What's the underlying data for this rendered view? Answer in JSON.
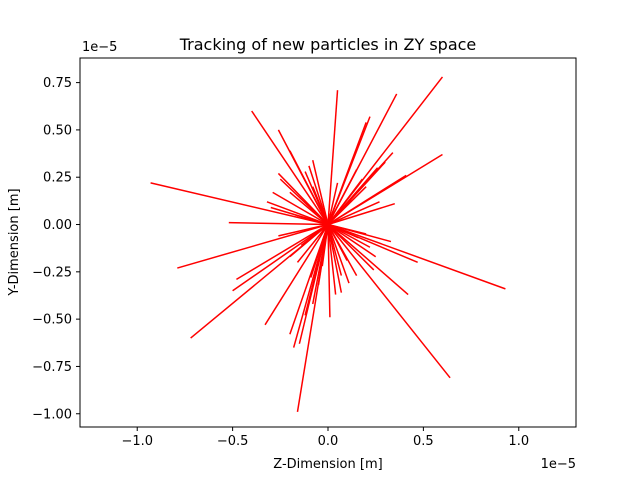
{
  "chart_data": {
    "type": "line",
    "title": "Tracking of new particles in ZY space",
    "xlabel": "Z-Dimension [m]",
    "ylabel": "Y-Dimension [m]",
    "x_exponent_label": "1e−5",
    "y_exponent_label": "1e−5",
    "axis_scale": 1e-05,
    "xlim": [
      -1.3e-05,
      1.3e-05
    ],
    "ylim": [
      -1.07e-05,
      8.8e-06
    ],
    "x_ticks": [
      -1e-05,
      -5e-06,
      0.0,
      5e-06,
      1e-05
    ],
    "x_tick_labels": [
      "−1.0",
      "−0.5",
      "0.0",
      "0.5",
      "1.0"
    ],
    "y_ticks": [
      -1e-05,
      -7.5e-06,
      -5e-06,
      -2.5e-06,
      0.0,
      2.5e-06,
      5e-06,
      7.5e-06
    ],
    "y_tick_labels": [
      "−1.00",
      "−0.75",
      "−0.50",
      "−0.25",
      "0.00",
      "0.25",
      "0.50",
      "0.75"
    ],
    "grid": false,
    "line_color": "#ff0000",
    "origin": [
      0.0,
      0.0
    ],
    "track_endpoints": [
      [
        6e-06,
        7.8e-06
      ],
      [
        5e-07,
        7.1e-06
      ],
      [
        3.6e-06,
        6.9e-06
      ],
      [
        -4e-06,
        6e-06
      ],
      [
        2.2e-06,
        5.7e-06
      ],
      [
        2e-06,
        5.4e-06
      ],
      [
        -2.6e-06,
        5e-06
      ],
      [
        6e-06,
        3.7e-06
      ],
      [
        3.4e-06,
        3.8e-06
      ],
      [
        -2e-06,
        3.9e-06
      ],
      [
        3e-06,
        3.3e-06
      ],
      [
        -8e-07,
        3.4e-06
      ],
      [
        -1e-06,
        3.1e-06
      ],
      [
        4.1e-06,
        2.6e-06
      ],
      [
        2.6e-06,
        3e-06
      ],
      [
        1.5e-06,
        2.9e-06
      ],
      [
        -9.3e-06,
        2.2e-06
      ],
      [
        -2.6e-06,
        2.7e-06
      ],
      [
        2e-06,
        2e-06
      ],
      [
        -2.5e-06,
        2.4e-06
      ],
      [
        -2e-06,
        1.7e-06
      ],
      [
        -2.9e-06,
        1.7e-06
      ],
      [
        1.2e-06,
        1.3e-06
      ],
      [
        3.5e-06,
        1.1e-06
      ],
      [
        -3.2e-06,
        1.2e-06
      ],
      [
        -3e-06,
        9e-07
      ],
      [
        -1.7e-06,
        5e-07
      ],
      [
        -5.2e-06,
        1e-07
      ],
      [
        2e-06,
        -5e-07
      ],
      [
        1.6e-06,
        -7e-07
      ],
      [
        3.3e-06,
        -9e-07
      ],
      [
        -1.4e-06,
        -1.1e-06
      ],
      [
        -2.6e-06,
        -6e-07
      ],
      [
        -2e-06,
        -1.7e-06
      ],
      [
        4.7e-06,
        -2e-06
      ],
      [
        2.5e-06,
        -1.7e-06
      ],
      [
        2.4e-06,
        -2.4e-06
      ],
      [
        -7.9e-06,
        -2.3e-06
      ],
      [
        -1.6e-06,
        -2e-06
      ],
      [
        -4.8e-06,
        -2.9e-06
      ],
      [
        1.5e-06,
        -2.7e-06
      ],
      [
        7e-07,
        -2.7e-06
      ],
      [
        -9e-07,
        -2.8e-06
      ],
      [
        -5e-06,
        -3.5e-06
      ],
      [
        9.3e-06,
        -3.4e-06
      ],
      [
        4.2e-06,
        -3.7e-06
      ],
      [
        4e-07,
        -3.7e-06
      ],
      [
        7e-07,
        -3.6e-06
      ],
      [
        -8e-07,
        -4.2e-06
      ],
      [
        1e-07,
        -4.9e-06
      ],
      [
        -1.2e-06,
        -4.8e-06
      ],
      [
        -3.3e-06,
        -5.3e-06
      ],
      [
        -2e-06,
        -5.8e-06
      ],
      [
        -7.2e-06,
        -6e-06
      ],
      [
        -1.5e-06,
        -6.3e-06
      ],
      [
        -1.8e-06,
        -6.5e-06
      ],
      [
        6.4e-06,
        -8.1e-06
      ],
      [
        -1.6e-06,
        -9.9e-06
      ],
      [
        1e-06,
        -1.9e-06
      ],
      [
        -3e-07,
        -2.2e-06
      ],
      [
        5e-07,
        2.2e-06
      ],
      [
        1.8e-06,
        2.4e-06
      ],
      [
        -8e-07,
        2e-06
      ],
      [
        2.2e-06,
        -1.2e-06
      ],
      [
        -5e-07,
        -3.2e-06
      ],
      [
        1.1e-06,
        -3.1e-06
      ],
      [
        -1.2e-06,
        2.8e-06
      ],
      [
        2.7e-06,
        1.2e-06
      ]
    ]
  }
}
